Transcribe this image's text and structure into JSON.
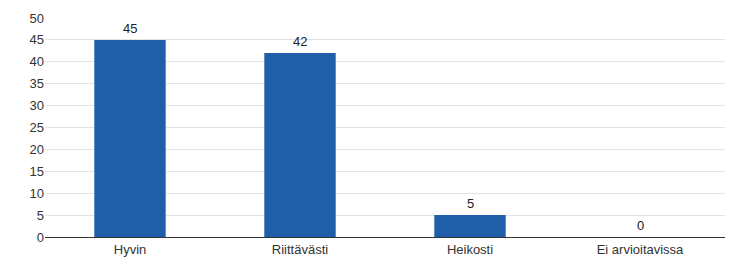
{
  "chart_data": {
    "type": "bar",
    "categories": [
      "Hyvin",
      "Riittävästi",
      "Heikosti",
      "Ei arvioitavissa"
    ],
    "values": [
      45,
      42,
      5,
      0
    ],
    "color": "#1f5ea8",
    "ylim": [
      0,
      50
    ],
    "yticks": [
      0,
      5,
      10,
      15,
      20,
      25,
      30,
      35,
      40,
      45,
      50
    ],
    "grid": true,
    "data_labels": true
  }
}
